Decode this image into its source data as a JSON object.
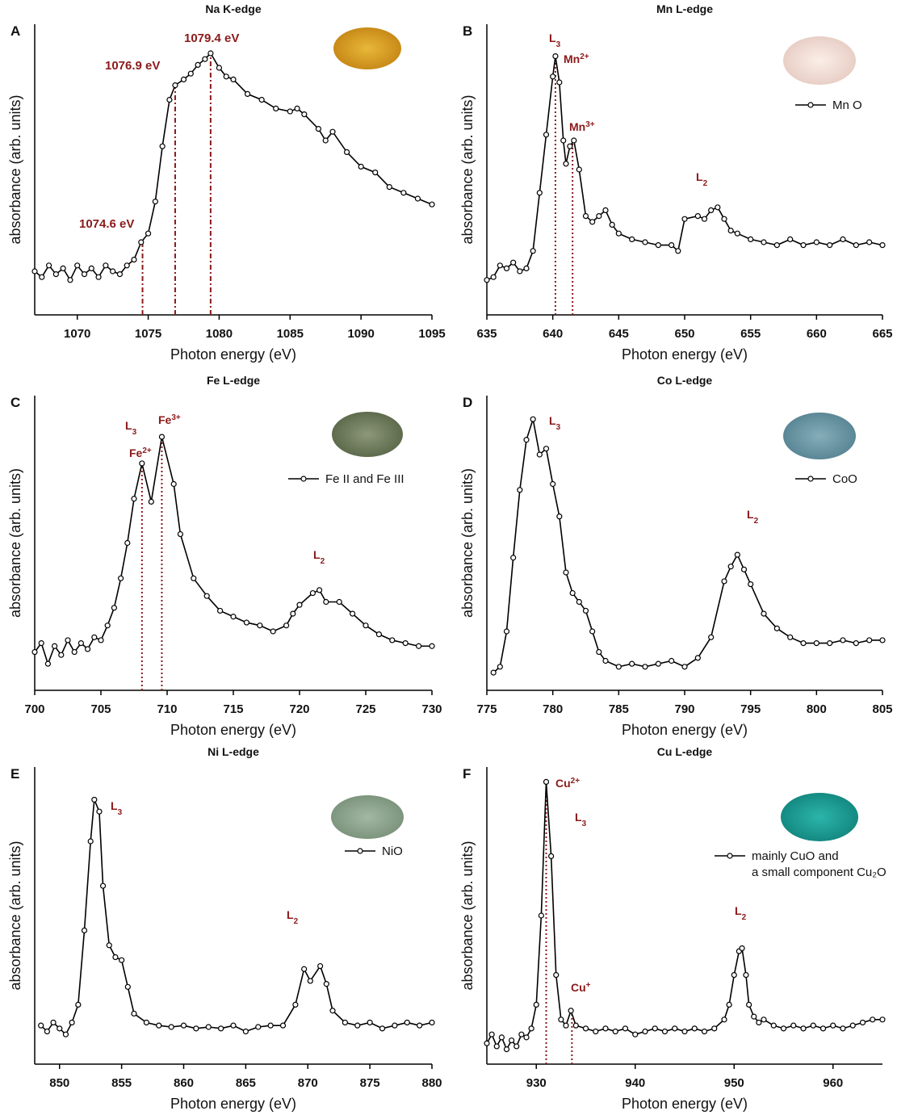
{
  "chart_data": [
    {
      "type": "line",
      "panel": "A",
      "title": "Na K-edge",
      "xlabel": "Photon energy (eV)",
      "ylabel": "absorbance (arb. units)",
      "x": [
        1067,
        1067.5,
        1068,
        1068.5,
        1069,
        1069.5,
        1070,
        1070.5,
        1071,
        1071.5,
        1072,
        1072.5,
        1073,
        1073.5,
        1074,
        1074.5,
        1075,
        1075.5,
        1076,
        1076.5,
        1076.9,
        1077.5,
        1078,
        1078.5,
        1079,
        1079.4,
        1080,
        1080.5,
        1081,
        1082,
        1083,
        1084,
        1085,
        1085.5,
        1086,
        1087,
        1087.5,
        1088,
        1089,
        1090,
        1091,
        1092,
        1093,
        1094,
        1095
      ],
      "series": [
        {
          "color": "#000000",
          "values": [
            0.15,
            0.13,
            0.17,
            0.14,
            0.16,
            0.12,
            0.17,
            0.14,
            0.16,
            0.13,
            0.17,
            0.15,
            0.14,
            0.17,
            0.19,
            0.25,
            0.28,
            0.39,
            0.58,
            0.74,
            0.79,
            0.81,
            0.83,
            0.86,
            0.88,
            0.9,
            0.85,
            0.82,
            0.81,
            0.76,
            0.74,
            0.71,
            0.7,
            0.71,
            0.69,
            0.64,
            0.6,
            0.63,
            0.56,
            0.51,
            0.49,
            0.44,
            0.42,
            0.4,
            0.38
          ]
        }
      ],
      "xlim": [
        1067,
        1095
      ],
      "ylim": [
        0,
        1
      ],
      "xticks": [
        1070,
        1075,
        1080,
        1085,
        1090,
        1095
      ],
      "vlines": [
        {
          "x": 1074.6,
          "y": 0.25,
          "label": "1074.6 eV"
        },
        {
          "x": 1076.9,
          "y": 0.79,
          "label": "1076.9 eV"
        },
        {
          "x": 1079.4,
          "y": 0.9,
          "label": "1079.4 eV"
        }
      ],
      "annotations": []
    },
    {
      "type": "line",
      "panel": "B",
      "title": "Mn L-edge",
      "xlabel": "Photon energy (eV)",
      "ylabel": "absorbance (arb. units)",
      "x": [
        635,
        635.5,
        636,
        636.5,
        637,
        637.5,
        638,
        638.5,
        639,
        639.5,
        640,
        640.2,
        640.5,
        640.8,
        641,
        641.3,
        641.6,
        642,
        642.5,
        643,
        643.5,
        644,
        644.5,
        645,
        646,
        647,
        648,
        649,
        649.5,
        650,
        651,
        651.5,
        652,
        652.5,
        653,
        653.5,
        654,
        655,
        656,
        657,
        658,
        659,
        660,
        661,
        662,
        663,
        664,
        665
      ],
      "series": [
        {
          "name": "Mn O",
          "color": "#000000",
          "values": [
            0.12,
            0.13,
            0.17,
            0.16,
            0.18,
            0.15,
            0.16,
            0.22,
            0.42,
            0.62,
            0.82,
            0.89,
            0.8,
            0.6,
            0.52,
            0.58,
            0.6,
            0.5,
            0.34,
            0.32,
            0.34,
            0.36,
            0.31,
            0.28,
            0.26,
            0.25,
            0.24,
            0.24,
            0.22,
            0.33,
            0.34,
            0.33,
            0.36,
            0.37,
            0.33,
            0.29,
            0.28,
            0.26,
            0.25,
            0.24,
            0.26,
            0.24,
            0.25,
            0.24,
            0.26,
            0.24,
            0.25,
            0.24
          ]
        }
      ],
      "xlim": [
        635,
        665
      ],
      "ylim": [
        0,
        1
      ],
      "xticks": [
        635,
        640,
        645,
        650,
        655,
        660,
        665
      ],
      "vlines": [
        {
          "x": 640.2,
          "y": 0.89
        },
        {
          "x": 641.5,
          "y": 0.6
        }
      ],
      "annotations": [
        {
          "text": "L",
          "sub": "3"
        },
        {
          "text": "Mn",
          "sup": "2+"
        },
        {
          "text": "Mn",
          "sup": "3+"
        },
        {
          "text": "L",
          "sub": "2"
        }
      ]
    },
    {
      "type": "line",
      "panel": "C",
      "title": "Fe L-edge",
      "xlabel": "Photon energy (eV)",
      "ylabel": "absorbance (arb. units)",
      "x": [
        700,
        700.5,
        701,
        701.5,
        702,
        702.5,
        703,
        703.5,
        704,
        704.5,
        705,
        705.5,
        706,
        706.5,
        707,
        707.5,
        708.1,
        708.8,
        709.6,
        710.5,
        711,
        712,
        713,
        714,
        715,
        716,
        717,
        718,
        719,
        719.5,
        720,
        721,
        721.5,
        722,
        723,
        724,
        725,
        726,
        727,
        728,
        729,
        730
      ],
      "series": [
        {
          "name": "Fe II and Fe III",
          "color": "#000000",
          "values": [
            0.13,
            0.16,
            0.09,
            0.15,
            0.12,
            0.17,
            0.13,
            0.16,
            0.14,
            0.18,
            0.17,
            0.22,
            0.28,
            0.38,
            0.5,
            0.65,
            0.77,
            0.64,
            0.86,
            0.7,
            0.53,
            0.38,
            0.32,
            0.27,
            0.25,
            0.23,
            0.22,
            0.2,
            0.22,
            0.26,
            0.29,
            0.33,
            0.34,
            0.3,
            0.3,
            0.26,
            0.22,
            0.19,
            0.17,
            0.16,
            0.15,
            0.15
          ]
        }
      ],
      "xlim": [
        700,
        730
      ],
      "ylim": [
        0,
        1
      ],
      "xticks": [
        700,
        705,
        710,
        715,
        720,
        725,
        730
      ],
      "vlines": [
        {
          "x": 708.1,
          "y": 0.77
        },
        {
          "x": 709.6,
          "y": 0.86
        }
      ],
      "annotations": [
        {
          "text": "L",
          "sub": "3"
        },
        {
          "text": "Fe",
          "sup": "3+"
        },
        {
          "text": "Fe",
          "sup": "2+"
        },
        {
          "text": "L",
          "sub": "2"
        }
      ]
    },
    {
      "type": "line",
      "panel": "D",
      "title": "Co L-edge",
      "xlabel": "Photon energy (eV)",
      "ylabel": "absorbance (arb. units)",
      "x": [
        775.5,
        776,
        776.5,
        777,
        777.5,
        778,
        778.5,
        779,
        779.5,
        780,
        780.5,
        781,
        781.5,
        782,
        782.5,
        783,
        783.5,
        784,
        785,
        786,
        787,
        788,
        789,
        790,
        791,
        792,
        793,
        793.5,
        794,
        794.5,
        795,
        796,
        797,
        798,
        799,
        800,
        801,
        802,
        803,
        804,
        805
      ],
      "series": [
        {
          "name": "CoO",
          "color": "#000000",
          "values": [
            0.06,
            0.08,
            0.2,
            0.45,
            0.68,
            0.85,
            0.92,
            0.8,
            0.82,
            0.7,
            0.59,
            0.4,
            0.33,
            0.3,
            0.27,
            0.2,
            0.13,
            0.1,
            0.08,
            0.09,
            0.08,
            0.09,
            0.1,
            0.08,
            0.11,
            0.18,
            0.37,
            0.42,
            0.46,
            0.41,
            0.36,
            0.26,
            0.21,
            0.18,
            0.16,
            0.16,
            0.16,
            0.17,
            0.16,
            0.17,
            0.17
          ]
        }
      ],
      "xlim": [
        775,
        805
      ],
      "ylim": [
        0,
        1
      ],
      "xticks": [
        775,
        780,
        785,
        790,
        795,
        800,
        805
      ],
      "vlines": [],
      "annotations": [
        {
          "text": "L",
          "sub": "3"
        },
        {
          "text": "L",
          "sub": "2"
        }
      ]
    },
    {
      "type": "line",
      "panel": "E",
      "title": "Ni L-edge",
      "xlabel": "Photon energy (eV)",
      "ylabel": "absorbance (arb. units)",
      "x": [
        848.5,
        849,
        849.5,
        850,
        850.5,
        851,
        851.5,
        852,
        852.5,
        852.8,
        853.2,
        853.5,
        854,
        854.5,
        855,
        855.5,
        856,
        857,
        858,
        859,
        860,
        861,
        862,
        863,
        864,
        865,
        866,
        867,
        868,
        869,
        869.7,
        870.2,
        871,
        871.5,
        872,
        873,
        874,
        875,
        876,
        877,
        878,
        879,
        880
      ],
      "series": [
        {
          "name": "NiO",
          "color": "#000000",
          "values": [
            0.13,
            0.11,
            0.14,
            0.12,
            0.1,
            0.14,
            0.2,
            0.45,
            0.75,
            0.89,
            0.85,
            0.6,
            0.4,
            0.36,
            0.35,
            0.26,
            0.17,
            0.14,
            0.13,
            0.125,
            0.13,
            0.12,
            0.125,
            0.12,
            0.13,
            0.11,
            0.125,
            0.13,
            0.13,
            0.2,
            0.32,
            0.28,
            0.33,
            0.27,
            0.18,
            0.14,
            0.13,
            0.14,
            0.12,
            0.13,
            0.14,
            0.13,
            0.14
          ]
        }
      ],
      "xlim": [
        848,
        880
      ],
      "ylim": [
        0,
        1
      ],
      "xticks": [
        850,
        855,
        860,
        865,
        870,
        875,
        880
      ],
      "vlines": [],
      "annotations": [
        {
          "text": "L",
          "sub": "3"
        },
        {
          "text": "L",
          "sub": "2"
        }
      ]
    },
    {
      "type": "line",
      "panel": "F",
      "title": "Cu L-edge",
      "xlabel": "Photon energy (eV)",
      "ylabel": "absorbance (arb. units)",
      "x": [
        925,
        925.5,
        926,
        926.5,
        927,
        927.5,
        928,
        928.5,
        929,
        929.5,
        930,
        930.5,
        931,
        931.5,
        932,
        932.5,
        933,
        933.5,
        934,
        935,
        936,
        937,
        938,
        939,
        940,
        941,
        942,
        943,
        944,
        945,
        946,
        947,
        948,
        949,
        949.5,
        950,
        950.5,
        950.8,
        951.2,
        951.5,
        952,
        952.5,
        953,
        954,
        955,
        956,
        957,
        958,
        959,
        960,
        961,
        962,
        963,
        964,
        965
      ],
      "series": [
        {
          "name": "mainly CuO and\na small component Cu₂O",
          "color": "#000000",
          "values": [
            0.07,
            0.1,
            0.06,
            0.09,
            0.05,
            0.08,
            0.06,
            0.1,
            0.09,
            0.12,
            0.2,
            0.5,
            0.95,
            0.7,
            0.3,
            0.15,
            0.13,
            0.18,
            0.13,
            0.12,
            0.11,
            0.12,
            0.11,
            0.12,
            0.1,
            0.11,
            0.12,
            0.11,
            0.12,
            0.11,
            0.12,
            0.11,
            0.12,
            0.15,
            0.2,
            0.3,
            0.38,
            0.39,
            0.3,
            0.2,
            0.16,
            0.14,
            0.15,
            0.13,
            0.12,
            0.13,
            0.12,
            0.13,
            0.12,
            0.13,
            0.12,
            0.13,
            0.14,
            0.15,
            0.15
          ]
        }
      ],
      "xlim": [
        925,
        965
      ],
      "ylim": [
        0,
        1
      ],
      "xticks": [
        930,
        940,
        950,
        960
      ],
      "vlines": [
        {
          "x": 931,
          "y": 0.95
        },
        {
          "x": 933.6,
          "y": 0.18
        }
      ],
      "annotations": [
        {
          "text": "Cu",
          "sup": "2+"
        },
        {
          "text": "L",
          "sub": "3"
        },
        {
          "text": "Cu",
          "sup": "+"
        },
        {
          "text": "L",
          "sub": "2"
        }
      ]
    }
  ]
}
